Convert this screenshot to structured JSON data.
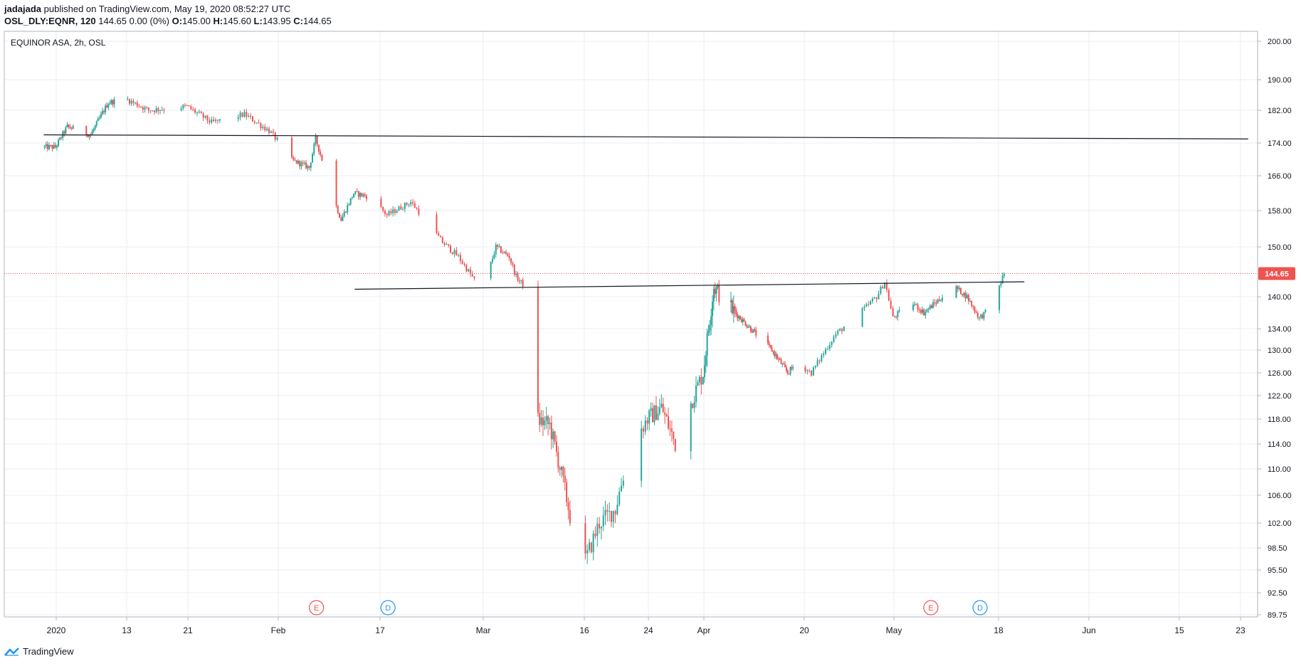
{
  "header": {
    "author": "jadajada",
    "published": "published on TradingView.com, May 19, 2020 08:52:27 UTC",
    "symbol": "OSL_DLY:EQNR, 120",
    "price_info": "144.65 0.00 (0%)",
    "o_label": "O:",
    "o_value": "145.00",
    "h_label": "H:",
    "h_value": "145.60",
    "l_label": "L:",
    "l_value": "143.95",
    "c_label": "C:",
    "c_value": "144.65"
  },
  "footer": {
    "brand": "TradingView"
  },
  "chart_data": {
    "type": "candlestick",
    "title": "EQUINOR ASA, 2h, OSL",
    "y_ticks": [
      "200.00",
      "190.00",
      "182.00",
      "174.00",
      "166.00",
      "158.00",
      "150.00",
      "140.00",
      "134.00",
      "130.00",
      "126.00",
      "122.00",
      "118.00",
      "114.00",
      "110.00",
      "106.00",
      "102.00",
      "98.50",
      "95.50",
      "92.50",
      "89.75"
    ],
    "y_range": [
      89.75,
      200.0
    ],
    "x_ticks": [
      "2020",
      "13",
      "21",
      "Feb",
      "17",
      "Mar",
      "16",
      "24",
      "Apr",
      "20",
      "May",
      "18",
      "Jun",
      "15",
      "23"
    ],
    "last_price": "144.65",
    "last_price_color": "#ef5350",
    "up_color": "#26a69a",
    "down_color": "#ef5350",
    "events": [
      {
        "label": "E",
        "color": "#ef5350",
        "date": "2020-02-07"
      },
      {
        "label": "D",
        "color": "#2196f3",
        "date": "2020-02-18"
      },
      {
        "label": "E",
        "color": "#ef5350",
        "date": "2020-05-07"
      },
      {
        "label": "D",
        "color": "#2196f3",
        "date": "2020-05-15"
      }
    ],
    "trendlines": [
      {
        "start": [
          "2019-12-30",
          176.0
        ],
        "end": [
          "2020-06-24",
          175.0
        ]
      },
      {
        "start": [
          "2020-02-13",
          141.5
        ],
        "end": [
          "2020-05-22",
          143.0
        ]
      }
    ],
    "price_path": [
      [
        "2020-01-01",
        173
      ],
      [
        "2020-01-03",
        178
      ],
      [
        "2020-01-07",
        176
      ],
      [
        "2020-01-10",
        184
      ],
      [
        "2020-01-13",
        185
      ],
      [
        "2020-01-16",
        182
      ],
      [
        "2020-01-21",
        183
      ],
      [
        "2020-01-24",
        179
      ],
      [
        "2020-01-28",
        181
      ],
      [
        "2020-01-31",
        177
      ],
      [
        "2020-02-03",
        170
      ],
      [
        "2020-02-06",
        168
      ],
      [
        "2020-02-07",
        175
      ],
      [
        "2020-02-10",
        160
      ],
      [
        "2020-02-11",
        156
      ],
      [
        "2020-02-13",
        162
      ],
      [
        "2020-02-16",
        161
      ],
      [
        "2020-02-18",
        157
      ],
      [
        "2020-02-21",
        160
      ],
      [
        "2020-02-25",
        151
      ],
      [
        "2020-02-27",
        148
      ],
      [
        "2020-03-01",
        141
      ],
      [
        "2020-03-03",
        150
      ],
      [
        "2020-03-05",
        148
      ],
      [
        "2020-03-06",
        144
      ],
      [
        "2020-03-08",
        141
      ],
      [
        "2020-03-09",
        118
      ],
      [
        "2020-03-11",
        117
      ],
      [
        "2020-03-13",
        108
      ],
      [
        "2020-03-14",
        103
      ],
      [
        "2020-03-15",
        108
      ],
      [
        "2020-03-16",
        96
      ],
      [
        "2020-03-18",
        102
      ],
      [
        "2020-03-20",
        104
      ],
      [
        "2020-03-22",
        114
      ],
      [
        "2020-03-24",
        118
      ],
      [
        "2020-03-26",
        120
      ],
      [
        "2020-03-28",
        114
      ],
      [
        "2020-03-30",
        120
      ],
      [
        "2020-04-01",
        126
      ],
      [
        "2020-04-03",
        142
      ],
      [
        "2020-04-06",
        138
      ],
      [
        "2020-04-08",
        136
      ],
      [
        "2020-04-11",
        133
      ],
      [
        "2020-04-14",
        130
      ],
      [
        "2020-04-17",
        126
      ],
      [
        "2020-04-19",
        128
      ],
      [
        "2020-04-21",
        126
      ],
      [
        "2020-04-24",
        133
      ],
      [
        "2020-04-27",
        137
      ],
      [
        "2020-04-29",
        140
      ],
      [
        "2020-04-30",
        143
      ],
      [
        "2020-05-01",
        136
      ],
      [
        "2020-05-04",
        139
      ],
      [
        "2020-05-06",
        137
      ],
      [
        "2020-05-08",
        139
      ],
      [
        "2020-05-11",
        142
      ],
      [
        "2020-05-13",
        140
      ],
      [
        "2020-05-15",
        136
      ],
      [
        "2020-05-17",
        138
      ],
      [
        "2020-05-19",
        144.65
      ]
    ]
  }
}
